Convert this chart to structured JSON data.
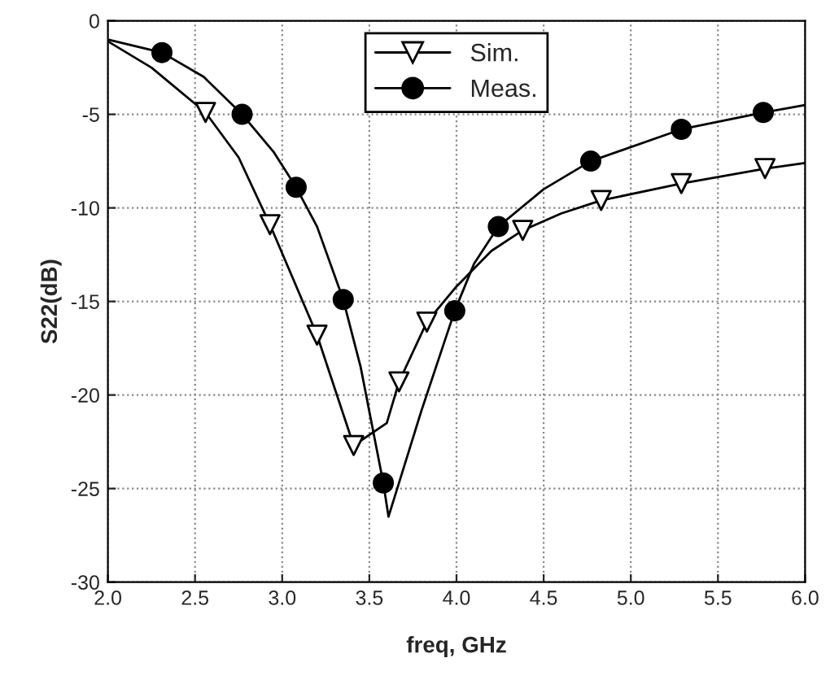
{
  "chart_data": {
    "type": "line",
    "xlabel": "freq, GHz",
    "ylabel": "S22(dB)",
    "xlim": [
      2.0,
      6.0
    ],
    "ylim": [
      -30,
      0
    ],
    "xticks": [
      {
        "value": 2,
        "label": "2.0"
      },
      2.5,
      {
        "value": 3,
        "label": "3.0"
      },
      3.5,
      {
        "value": 4,
        "label": "4.0"
      },
      4.5,
      {
        "value": 5,
        "label": "5.0"
      },
      5.5,
      {
        "value": 6,
        "label": "6.0"
      }
    ],
    "yticks": [
      0,
      -5,
      -10,
      -15,
      -20,
      -25,
      -30
    ],
    "grid": true,
    "legend": "top",
    "line_style": "solid",
    "series": [
      {
        "marker": "none",
        "color": "#000000",
        "x": [
          2.0,
          2.25,
          2.56,
          2.75,
          2.93,
          3.2,
          3.41,
          3.6,
          3.67,
          3.83,
          4.0,
          4.2,
          4.38,
          4.6,
          4.83,
          5.29,
          5.77,
          6.0
        ],
        "values": [
          -1.1,
          -2.5,
          -4.9,
          -7.3,
          -10.9,
          -16.8,
          -22.7,
          -21.5,
          -19.3,
          -16.1,
          -14.2,
          -12.3,
          -11.2,
          -10.3,
          -9.6,
          -8.7,
          -7.9,
          -7.6
        ]
      },
      {
        "marker": "none",
        "color": "#000000",
        "x": [
          2.0,
          2.31,
          2.55,
          2.77,
          2.95,
          3.08,
          3.2,
          3.35,
          3.45,
          3.58,
          3.61,
          3.8,
          3.99,
          4.1,
          4.24,
          4.5,
          4.77,
          5.29,
          5.76,
          6.0
        ],
        "values": [
          -1.0,
          -1.7,
          -3.0,
          -5.0,
          -7.0,
          -8.9,
          -11.0,
          -14.9,
          -18.5,
          -24.7,
          -26.5,
          -20.8,
          -15.5,
          -13.0,
          -11.0,
          -9.0,
          -7.5,
          -5.8,
          -4.9,
          -4.5
        ]
      },
      {
        "type": "scatter",
        "name": "Sim.",
        "marker": "triangle",
        "color": "#000000",
        "x": [
          2.56,
          2.93,
          3.2,
          3.41,
          3.67,
          3.83,
          4.38,
          4.83,
          5.29,
          5.77
        ],
        "values": [
          -4.9,
          -10.9,
          -16.8,
          -22.7,
          -19.3,
          -16.1,
          -11.2,
          -9.6,
          -8.7,
          -7.9
        ]
      },
      {
        "type": "scatter",
        "name": "Meas.",
        "marker": "circle",
        "color": "#000000",
        "x": [
          2.31,
          2.77,
          3.08,
          3.35,
          3.58,
          3.99,
          4.24,
          4.77,
          5.29,
          5.76
        ],
        "values": [
          -1.7,
          -5.0,
          -8.9,
          -14.9,
          -24.7,
          -15.5,
          -11.0,
          -7.5,
          -5.8,
          -4.9
        ]
      }
    ]
  }
}
